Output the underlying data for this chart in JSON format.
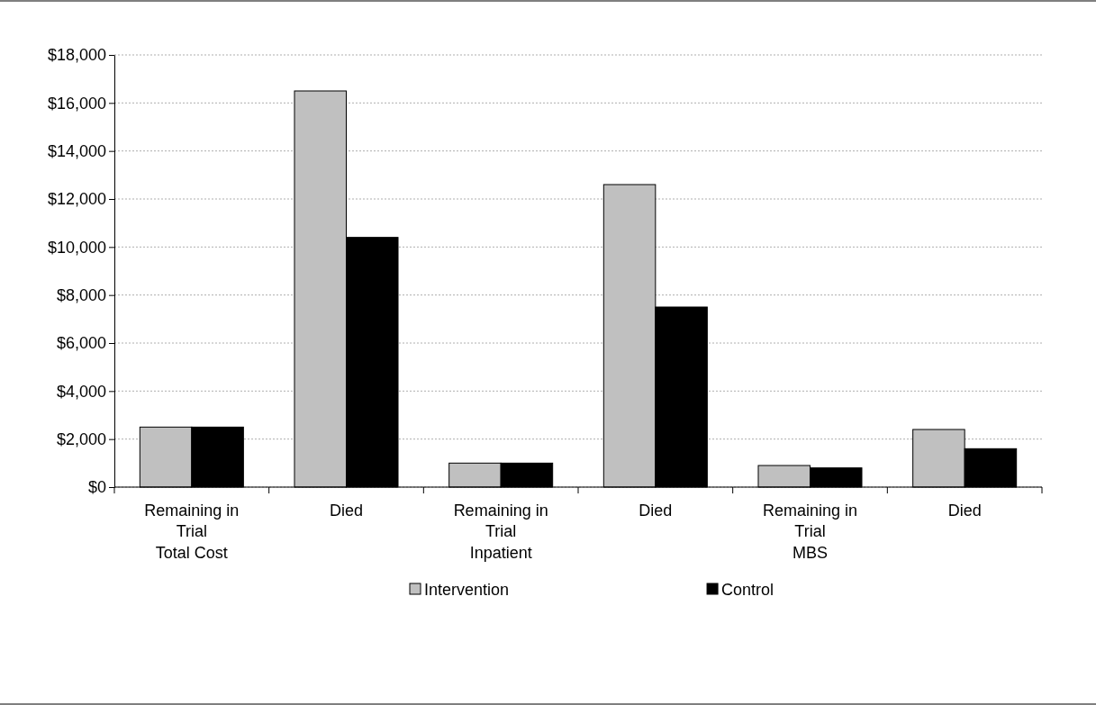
{
  "chart_data": {
    "type": "bar",
    "categories": [
      "Remaining in Trial\nTotal Cost",
      "Died",
      "Remaining in Trial\nInpatient",
      "Died",
      "Remaining in Trial\nMBS",
      "Died"
    ],
    "series": [
      {
        "name": "Intervention",
        "color": "#c0c0c0",
        "values": [
          2500,
          16500,
          1000,
          12600,
          900,
          2400
        ]
      },
      {
        "name": "Control",
        "color": "#000000",
        "values": [
          2500,
          10400,
          1000,
          7500,
          800,
          1600
        ]
      }
    ],
    "ylim": [
      0,
      18000
    ],
    "yticks": [
      {
        "value": 0,
        "label": "$0"
      },
      {
        "value": 2000,
        "label": "$2,000"
      },
      {
        "value": 4000,
        "label": "$4,000"
      },
      {
        "value": 6000,
        "label": "$6,000"
      },
      {
        "value": 8000,
        "label": "$8,000"
      },
      {
        "value": 10000,
        "label": "$10,000"
      },
      {
        "value": 12000,
        "label": "$12,000"
      },
      {
        "value": 14000,
        "label": "$14,000"
      },
      {
        "value": 16000,
        "label": "$16,000"
      },
      {
        "value": 18000,
        "label": "$18,000"
      }
    ],
    "grid": "y",
    "legend": "bottom"
  }
}
